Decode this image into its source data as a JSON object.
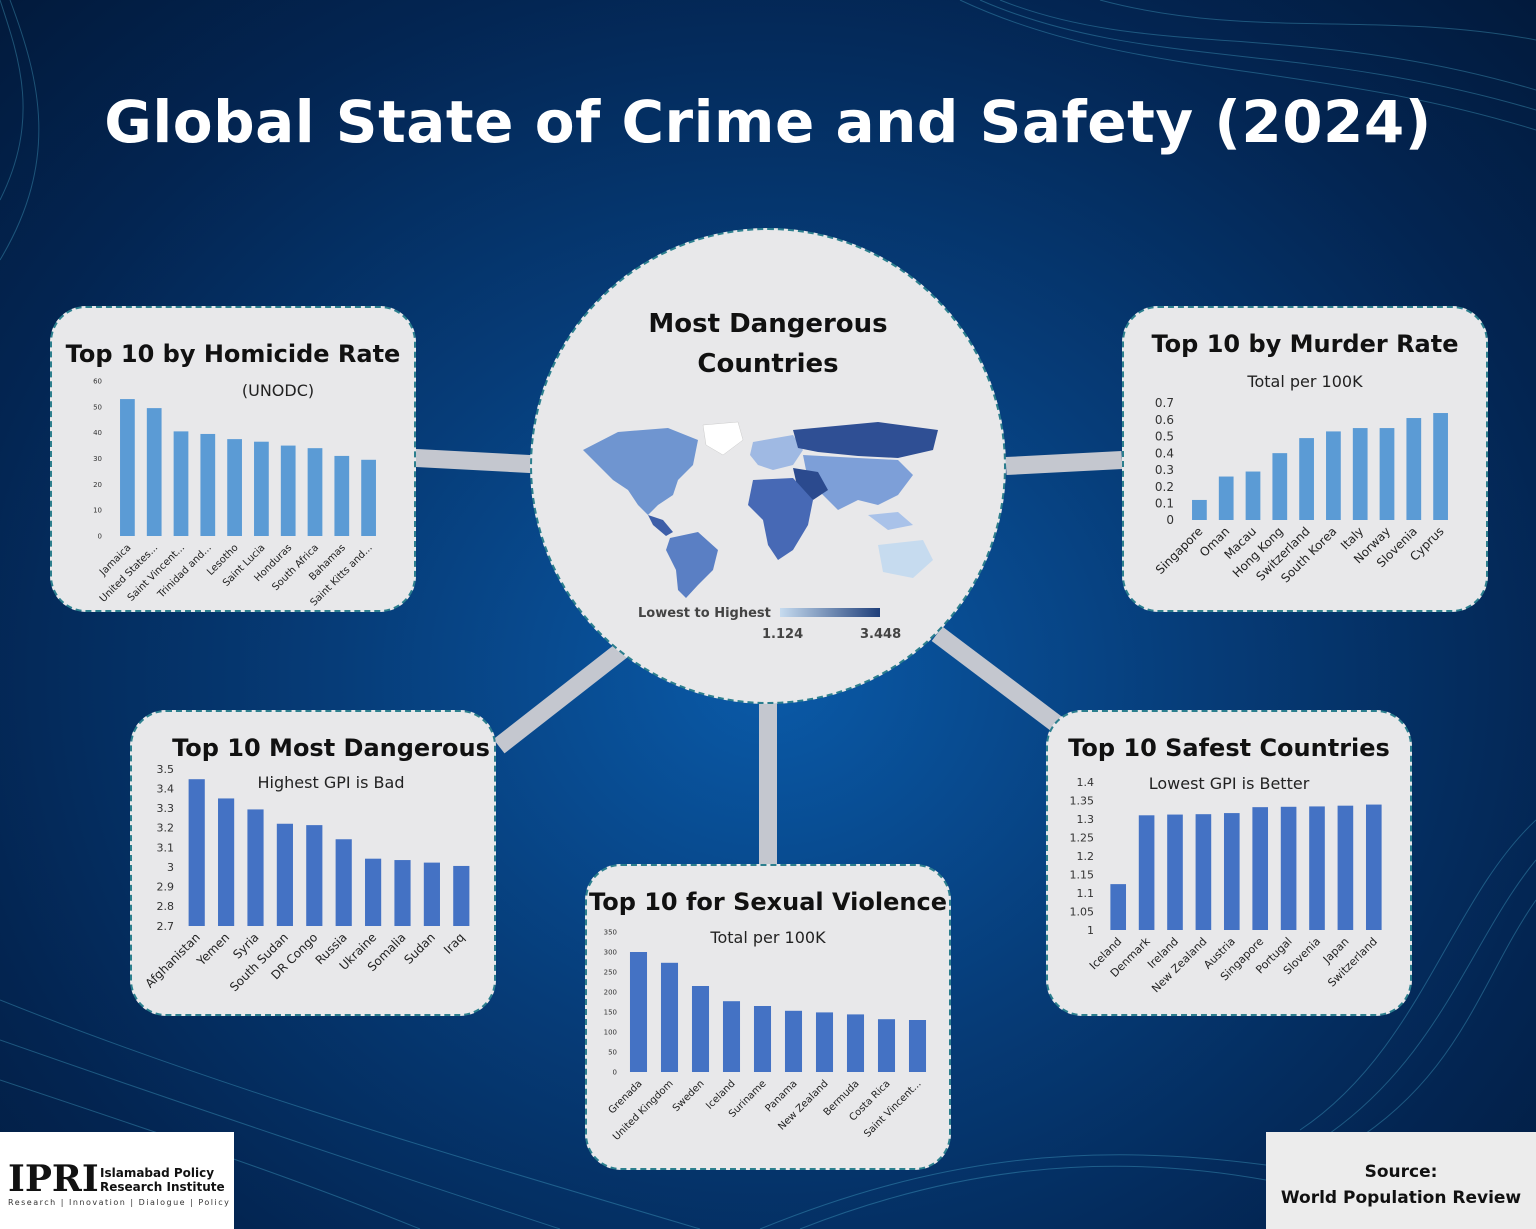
{
  "header": {
    "title": "Global State of Crime and Safety (2024)"
  },
  "center": {
    "title_line1": "Most Dangerous",
    "title_line2": "Countries",
    "legend_label": "Lowest to Highest",
    "legend_min": "1.124",
    "legend_max": "3.448",
    "colors": {
      "low": "#c6dbef",
      "high": "#1f3f7a"
    }
  },
  "footer": {
    "logo_letters": "IPRI",
    "logo_line1": "Islamabad Policy",
    "logo_line2": "Research Institute",
    "logo_tagline": "Research | Innovation | Dialogue | Policy",
    "source_line1": "Source:",
    "source_line2": "World Population Review"
  },
  "chart_data": [
    {
      "id": "homicide",
      "type": "bar",
      "title": "Top 10 by Homicide Rate",
      "subtitle": "(UNODC)",
      "categories": [
        "Jamaica",
        "United States...",
        "Saint Vincent...",
        "Trinidad and...",
        "Lesotho",
        "Saint Lucia",
        "Honduras",
        "South Africa",
        "Bahamas",
        "Saint Kitts and..."
      ],
      "values": [
        53,
        49.5,
        40.5,
        39.5,
        37.5,
        36.5,
        35,
        34,
        31,
        29.5
      ],
      "yticks": [
        "0",
        "10",
        "20",
        "30",
        "40",
        "50",
        "60"
      ],
      "ylim": [
        0,
        60
      ],
      "color": "#5b9bd5"
    },
    {
      "id": "murder",
      "type": "bar",
      "title": "Top 10 by Murder Rate",
      "subtitle": "Total per 100K",
      "categories": [
        "Singapore",
        "Oman",
        "Macau",
        "Hong Kong",
        "Switzerland",
        "South Korea",
        "Italy",
        "Norway",
        "Slovenia",
        "Cyprus"
      ],
      "values": [
        0.12,
        0.26,
        0.29,
        0.4,
        0.49,
        0.53,
        0.55,
        0.55,
        0.61,
        0.64
      ],
      "yticks": [
        "0",
        "0.1",
        "0.2",
        "0.3",
        "0.4",
        "0.5",
        "0.6",
        "0.7"
      ],
      "ylim": [
        0,
        0.7
      ],
      "color": "#5b9bd5"
    },
    {
      "id": "dangerous",
      "type": "bar",
      "title": "Top 10 Most Dangerous",
      "subtitle": "Highest GPI is Bad",
      "categories": [
        "Afghanistan",
        "Yemen",
        "Syria",
        "South Sudan",
        "DR Congo",
        "Russia",
        "Ukraine",
        "Somalia",
        "Sudan",
        "Iraq"
      ],
      "values": [
        3.448,
        3.35,
        3.294,
        3.221,
        3.214,
        3.142,
        3.043,
        3.036,
        3.023,
        3.006
      ],
      "yticks": [
        "2.7",
        "2.8",
        "2.9",
        "3",
        "3.1",
        "3.2",
        "3.3",
        "3.4",
        "3.5"
      ],
      "ylim": [
        2.7,
        3.5
      ],
      "color": "#4472c4"
    },
    {
      "id": "sexual",
      "type": "bar",
      "title": "Top 10 for Sexual Violence",
      "subtitle": "Total per 100K",
      "categories": [
        "Grenada",
        "United Kingdom",
        "Sweden",
        "Iceland",
        "Suriname",
        "Panama",
        "New Zealand",
        "Bermuda",
        "Costa Rica",
        "Saint Vincent..."
      ],
      "values": [
        300,
        273,
        215,
        177,
        165,
        153,
        149,
        144,
        132,
        130
      ],
      "yticks": [
        "0",
        "50",
        "100",
        "150",
        "200",
        "250",
        "300",
        "350"
      ],
      "ylim": [
        0,
        350
      ],
      "color": "#4472c4"
    },
    {
      "id": "safest",
      "type": "bar",
      "title": "Top 10 Safest Countries",
      "subtitle": "Lowest GPI is Better",
      "categories": [
        "Iceland",
        "Denmark",
        "Ireland",
        "New Zealand",
        "Austria",
        "Singapore",
        "Portugal",
        "Slovenia",
        "Japan",
        "Switzerland"
      ],
      "values": [
        1.124,
        1.31,
        1.312,
        1.313,
        1.316,
        1.332,
        1.333,
        1.334,
        1.336,
        1.339
      ],
      "yticks": [
        "1",
        "1.05",
        "1.1",
        "1.15",
        "1.2",
        "1.25",
        "1.3",
        "1.35",
        "1.4"
      ],
      "ylim": [
        1,
        1.4
      ],
      "color": "#4472c4"
    }
  ]
}
